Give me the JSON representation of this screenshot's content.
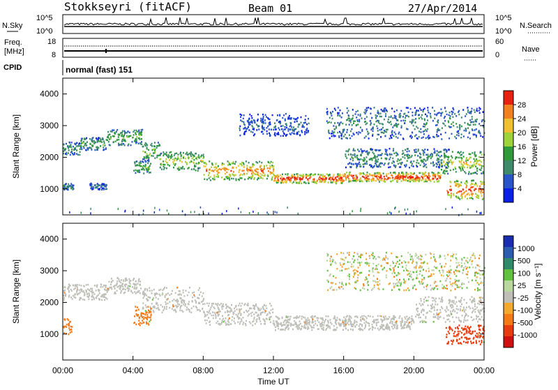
{
  "header": {
    "station": "Stokkseyri (fitACF)",
    "beam": "Beam 01",
    "date": "27/Apr/2014"
  },
  "top_panels": {
    "nsky": {
      "label": "N.Sky",
      "ticks": [
        "10^5",
        "10^0"
      ]
    },
    "nsearch": {
      "label": "N.Search",
      "ticks": [
        "10^5",
        "10^0"
      ]
    },
    "freq": {
      "label_line1": "Freq.",
      "label_line2": "[MHz]",
      "ticks": [
        "18",
        "8"
      ]
    },
    "nave": {
      "label": "Nave",
      "ticks": [
        "60",
        "0"
      ]
    },
    "cpid": {
      "label": "CPID",
      "value": "normal (fast) 151"
    }
  },
  "colors": {
    "power_scale": [
      "#0a20e6",
      "#2a55c8",
      "#3e8a6a",
      "#2e9a3a",
      "#9ed23a",
      "#f0c030",
      "#f08020",
      "#e82010"
    ],
    "velocity_scale": [
      "#d01010",
      "#e83c10",
      "#f47a18",
      "#f4a830",
      "#bfbfb8",
      "#b8d8a0",
      "#62c240",
      "#2f8a6a",
      "#2c5cb0",
      "#1a2cb0"
    ]
  },
  "chart_data": [
    {
      "type": "heatmap",
      "title": "Power",
      "ylabel": "Slant Range [km]",
      "xlabel": "",
      "ylim": [
        180,
        4500
      ],
      "y_ticks": [
        "1000",
        "2000",
        "3000",
        "4000"
      ],
      "x_range_hours": [
        0,
        24
      ],
      "colorbar": {
        "label": "Power [dB]",
        "ticks": [
          "4",
          "8",
          "12",
          "16",
          "20",
          "24",
          "28"
        ]
      },
      "echo_bands": [
        {
          "t0": 0.0,
          "t1": 1.0,
          "r0": 2100,
          "r1": 2500,
          "level": 0.35
        },
        {
          "t0": 1.0,
          "t1": 2.5,
          "r0": 2250,
          "r1": 2650,
          "level": 0.4
        },
        {
          "t0": 2.5,
          "t1": 4.5,
          "r0": 2400,
          "r1": 2900,
          "level": 0.45
        },
        {
          "t0": 4.5,
          "t1": 5.5,
          "r0": 1900,
          "r1": 2500,
          "level": 0.5
        },
        {
          "t0": 5.5,
          "t1": 8.0,
          "r0": 1600,
          "r1": 2200,
          "level": 0.55
        },
        {
          "t0": 8.0,
          "t1": 12.0,
          "r0": 1300,
          "r1": 1900,
          "level": 0.75
        },
        {
          "t0": 12.0,
          "t1": 16.0,
          "r0": 1200,
          "r1": 1500,
          "level": 0.9
        },
        {
          "t0": 16.0,
          "t1": 21.5,
          "r0": 1250,
          "r1": 1550,
          "level": 0.9
        },
        {
          "t0": 21.5,
          "t1": 24.0,
          "r0": 1500,
          "r1": 2200,
          "level": 0.6
        },
        {
          "t0": 21.8,
          "t1": 24.0,
          "r0": 700,
          "r1": 1300,
          "level": 0.85
        },
        {
          "t0": 4.0,
          "t1": 5.0,
          "r0": 1500,
          "r1": 1900,
          "level": 0.45
        },
        {
          "t0": 0.0,
          "t1": 0.6,
          "r0": 1000,
          "r1": 1200,
          "level": 0.3
        },
        {
          "t0": 1.5,
          "t1": 2.5,
          "r0": 1000,
          "r1": 1200,
          "level": 0.25
        },
        {
          "t0": 10.0,
          "t1": 14.0,
          "r0": 2700,
          "r1": 3400,
          "level": 0.2
        },
        {
          "t0": 15.0,
          "t1": 24.0,
          "r0": 2600,
          "r1": 3600,
          "level": 0.3
        },
        {
          "t0": 16.0,
          "t1": 22.0,
          "r0": 1700,
          "r1": 2300,
          "level": 0.35
        }
      ]
    },
    {
      "type": "heatmap",
      "title": "Velocity",
      "ylabel": "Slant Range [km]",
      "xlabel": "Time UT",
      "ylim": [
        180,
        4500
      ],
      "y_ticks": [
        "1000",
        "2000",
        "3000",
        "4000"
      ],
      "x_ticks": [
        "00:00",
        "04:00",
        "08:00",
        "12:00",
        "16:00",
        "20:00",
        "00:00"
      ],
      "x_range_hours": [
        0,
        24
      ],
      "colorbar": {
        "label": "Velocity [m s⁻¹]",
        "ticks": [
          "1000",
          "500",
          "100",
          "25",
          "-25",
          "-100",
          "-500",
          "-1000"
        ]
      },
      "echo_bands": [
        {
          "t0": 0.0,
          "t1": 2.5,
          "r0": 2100,
          "r1": 2600,
          "vel": 0
        },
        {
          "t0": 2.5,
          "t1": 4.5,
          "r0": 2300,
          "r1": 2800,
          "vel": 0
        },
        {
          "t0": 4.5,
          "t1": 8.0,
          "r0": 1700,
          "r1": 2500,
          "vel": 0
        },
        {
          "t0": 8.0,
          "t1": 12.0,
          "r0": 1300,
          "r1": 2000,
          "vel": 0
        },
        {
          "t0": 12.0,
          "t1": 20.0,
          "r0": 1150,
          "r1": 1600,
          "vel": 0
        },
        {
          "t0": 20.0,
          "t1": 24.0,
          "r0": 1400,
          "r1": 2200,
          "vel": 0
        },
        {
          "t0": 4.0,
          "t1": 5.0,
          "r0": 1300,
          "r1": 1900,
          "vel": -350
        },
        {
          "t0": 0.0,
          "t1": 0.5,
          "r0": 1000,
          "r1": 1500,
          "vel": -300
        },
        {
          "t0": 21.8,
          "t1": 24.0,
          "r0": 700,
          "r1": 1300,
          "vel": -700
        },
        {
          "t0": 15.0,
          "t1": 24.0,
          "r0": 2400,
          "r1": 3600,
          "vel": 30
        }
      ]
    }
  ]
}
